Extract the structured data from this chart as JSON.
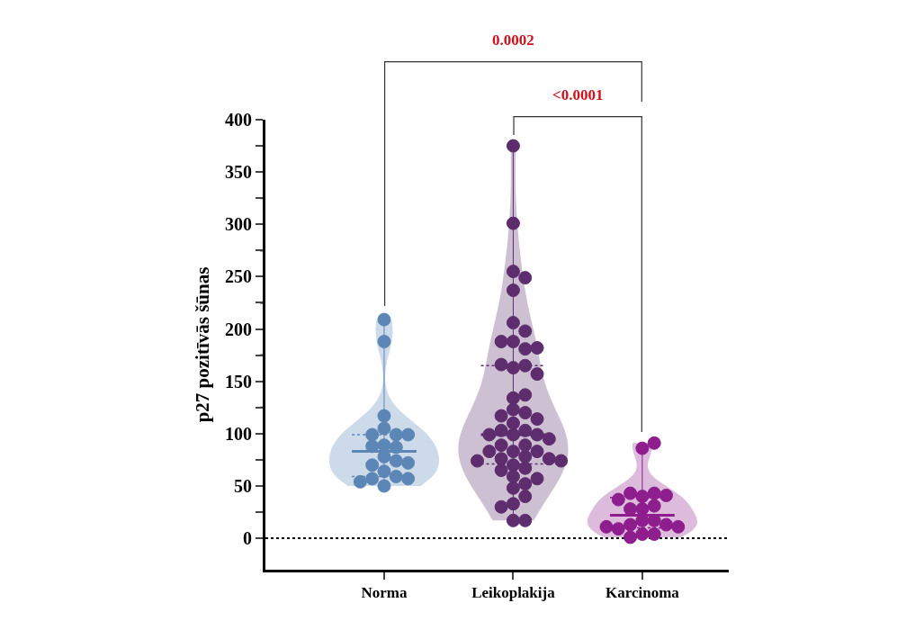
{
  "chart_data": {
    "type": "box",
    "ylabel": "p27 pozitīvās šūnas",
    "categories": [
      "Norma",
      "Leikoplakija",
      "Karcinoma"
    ],
    "colors": [
      "#5b86b5",
      "#5e2d6e",
      "#8e1d8e"
    ],
    "boxes": [
      {
        "low": 50,
        "q1": 59,
        "median": 83,
        "q3": 99,
        "high": 209
      },
      {
        "low": 17,
        "q1": 71,
        "median": 99,
        "q3": 165,
        "high": 375
      },
      {
        "low": 1,
        "q1": 10,
        "median": 22,
        "q3": 39,
        "high": 91
      }
    ],
    "series": [
      {
        "type": "scatter",
        "color": "#5b86b5",
        "x": [
          "Norma",
          "Norma",
          "Norma",
          "Norma",
          "Norma",
          "Norma",
          "Norma",
          "Norma",
          "Norma",
          "Norma",
          "Norma",
          "Norma",
          "Norma",
          "Norma",
          "Norma",
          "Norma",
          "Norma",
          "Norma",
          "Norma",
          "Norma"
        ],
        "values": [
          209,
          188,
          117,
          105,
          99,
          99,
          99,
          89,
          87,
          88,
          78,
          74,
          70,
          72,
          64,
          59,
          57,
          57,
          54,
          50
        ]
      },
      {
        "type": "scatter",
        "color": "#5e2d6e",
        "x": [
          "Leikoplakija",
          "Leikoplakija",
          "Leikoplakija",
          "Leikoplakija",
          "Leikoplakija",
          "Leikoplakija",
          "Leikoplakija",
          "Leikoplakija",
          "Leikoplakija",
          "Leikoplakija",
          "Leikoplakija",
          "Leikoplakija",
          "Leikoplakija",
          "Leikoplakija",
          "Leikoplakija",
          "Leikoplakija",
          "Leikoplakija",
          "Leikoplakija",
          "Leikoplakija",
          "Leikoplakija",
          "Leikoplakija",
          "Leikoplakija",
          "Leikoplakija",
          "Leikoplakija",
          "Leikoplakija",
          "Leikoplakija",
          "Leikoplakija",
          "Leikoplakija",
          "Leikoplakija",
          "Leikoplakija",
          "Leikoplakija",
          "Leikoplakija",
          "Leikoplakija",
          "Leikoplakija",
          "Leikoplakija",
          "Leikoplakija",
          "Leikoplakija",
          "Leikoplakija",
          "Leikoplakija",
          "Leikoplakija",
          "Leikoplakija",
          "Leikoplakija",
          "Leikoplakija",
          "Leikoplakija",
          "Leikoplakija",
          "Leikoplakija",
          "Leikoplakija",
          "Leikoplakija",
          "Leikoplakija",
          "Leikoplakija"
        ],
        "values": [
          375,
          301,
          255,
          249,
          237,
          206,
          198,
          188,
          188,
          181,
          182,
          163,
          165,
          166,
          157,
          134,
          137,
          123,
          120,
          117,
          114,
          110,
          103,
          103,
          99,
          99,
          99,
          95,
          89,
          89,
          83,
          83,
          83,
          78,
          76,
          76,
          74,
          74,
          70,
          67,
          65,
          59,
          57,
          52,
          48,
          40,
          33,
          30,
          17,
          17
        ]
      },
      {
        "type": "scatter",
        "color": "#8e1d8e",
        "x": [
          "Karcinoma",
          "Karcinoma",
          "Karcinoma",
          "Karcinoma",
          "Karcinoma",
          "Karcinoma",
          "Karcinoma",
          "Karcinoma",
          "Karcinoma",
          "Karcinoma",
          "Karcinoma",
          "Karcinoma",
          "Karcinoma",
          "Karcinoma",
          "Karcinoma",
          "Karcinoma",
          "Karcinoma",
          "Karcinoma",
          "Karcinoma",
          "Karcinoma"
        ],
        "values": [
          86,
          91,
          40,
          43,
          43,
          41,
          37,
          31,
          28,
          28,
          17,
          17,
          13,
          13,
          9,
          11,
          11,
          4,
          4,
          1
        ]
      }
    ],
    "ylim": [
      -30,
      400
    ],
    "yticks": [
      0,
      {
        "value": 25,
        "label": null
      },
      50,
      {
        "value": 75,
        "label": null
      },
      100,
      {
        "value": 125,
        "label": null
      },
      150,
      {
        "value": 175,
        "label": null
      },
      200,
      {
        "value": 225,
        "label": null
      },
      250,
      {
        "value": 275,
        "label": null
      },
      300,
      {
        "value": 325,
        "label": null
      },
      350,
      {
        "value": 375,
        "label": null
      },
      400
    ],
    "ref_lines": [
      {
        "axis": "y",
        "value": 0,
        "line_style": "dotted",
        "color": "#000000"
      }
    ],
    "annotations": [
      "0.0002",
      "<0.0001"
    ],
    "marker": "circle"
  }
}
